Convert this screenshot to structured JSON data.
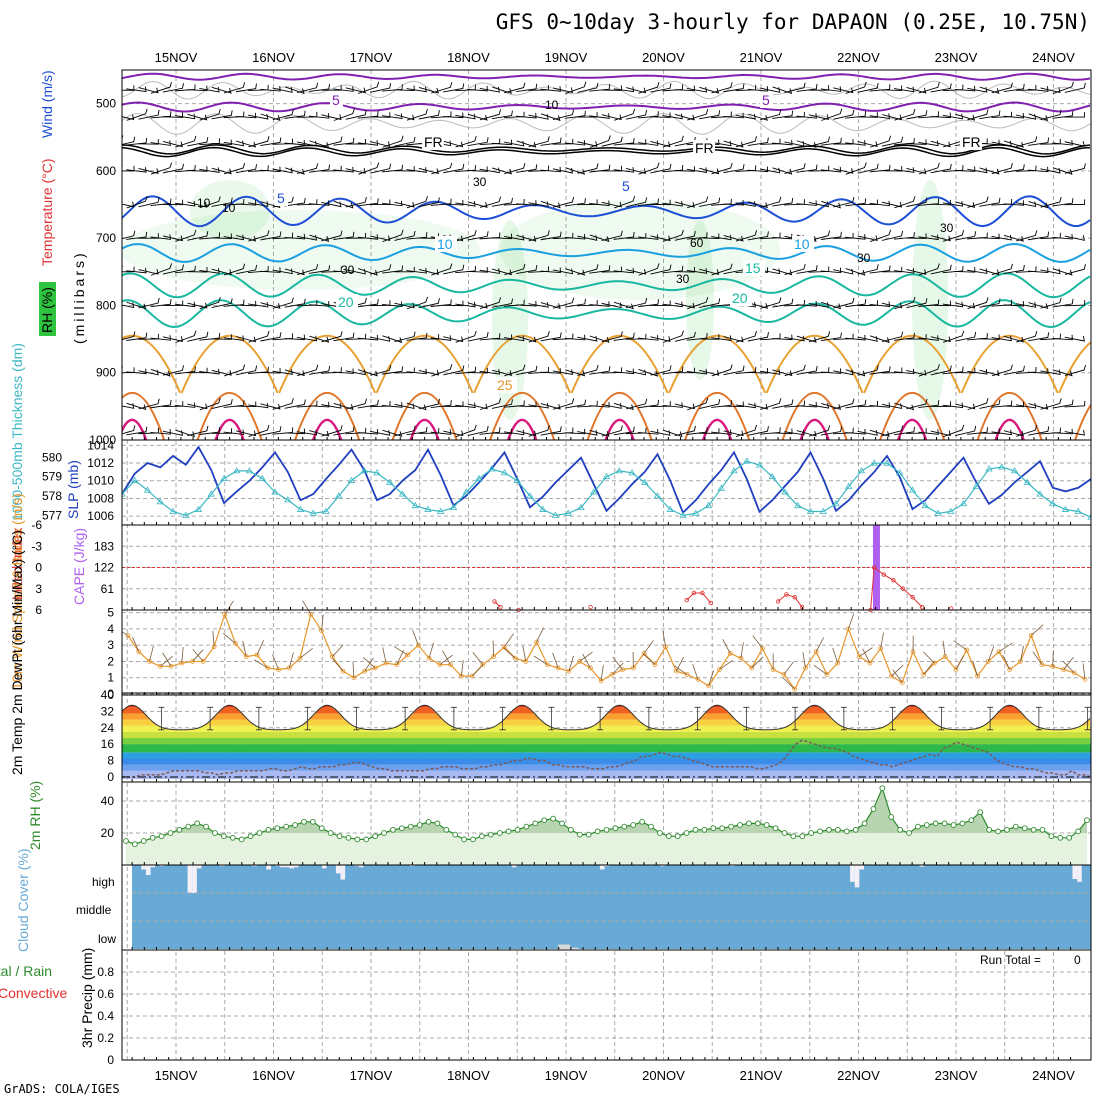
{
  "title": "GFS 0~10day 3-hourly for DAPAON (0.25E, 10.75N)",
  "credit": "GrADS: COLA/IGES",
  "dates": [
    "15NOV",
    "16NOV",
    "17NOV",
    "18NOV",
    "19NOV",
    "20NOV",
    "21NOV",
    "22NOV",
    "23NOV",
    "24NOV"
  ],
  "colors": {
    "tempLine": "#1d4fd6",
    "rhFill": "#2fc43f",
    "wind": "#000000",
    "thickness": "#1f3fbf",
    "slp": "#3bb8c4",
    "lifted": "#e03030",
    "cape": "#b060f0",
    "windSpeed": "#e8962a",
    "rh2m": "#2e8b2e",
    "cloud": "#69a9d6"
  },
  "chart_data": [
    {
      "type": "contour",
      "panel": "upper-air",
      "ylabel_parts": [
        "RH (%)",
        "Temperature (°C)",
        "Wind (m/s)",
        "(millibars)"
      ],
      "yticks": [
        500,
        600,
        700,
        800,
        900,
        1000
      ],
      "ylim": [
        450,
        1000
      ],
      "contour_labels": [
        {
          "text": "5",
          "color": "#8020b0"
        },
        {
          "text": "5",
          "color": "#8020b0"
        },
        {
          "text": "FR",
          "color": "#000000"
        },
        {
          "text": "FR",
          "color": "#000000"
        },
        {
          "text": "FR",
          "color": "#000000"
        },
        {
          "text": "5",
          "color": "#1d4fd6"
        },
        {
          "text": "5",
          "color": "#1d4fd6"
        },
        {
          "text": "10",
          "color": "#1aa0e0"
        },
        {
          "text": "10",
          "color": "#1aa0e0"
        },
        {
          "text": "15",
          "color": "#18b8a0"
        },
        {
          "text": "20",
          "color": "#18b8a0"
        },
        {
          "text": "20",
          "color": "#18b8a0"
        },
        {
          "text": "25",
          "color": "#e8962a"
        }
      ],
      "rh_labels": [
        "10",
        "10",
        "30",
        "10",
        "30",
        "60",
        "30",
        "30",
        "30"
      ]
    },
    {
      "type": "line",
      "panel": "thickness-slp",
      "ylabel_left": "1000-500mb Thickness (dm)",
      "ylabel_right": "SLP (mb)",
      "yticks_left": [
        577,
        578,
        579,
        580
      ],
      "yticks_right": [
        1006,
        1008,
        1010,
        1012,
        1014
      ],
      "ylim_left": [
        576.5,
        580.9
      ],
      "ylim_right": [
        1005,
        1014.6
      ],
      "series": [
        {
          "values": [
            1008.5,
            1010.8,
            1012,
            1011.5,
            1012.8,
            1011.8,
            1013.8,
            1011.2,
            1007.5,
            1008.8,
            1010,
            1011.5,
            1013.2,
            1011,
            1007.8,
            1008.5,
            1010.2,
            1011.8,
            1013.5,
            1011.2,
            1007.8,
            1008.5,
            1010,
            1011.2,
            1013.5,
            1010.6,
            1007.2,
            1008.3,
            1009.8,
            1011.4,
            1013.2,
            1010.2,
            1007,
            1008.2,
            1009.8,
            1011.2,
            1012.6,
            1009.6,
            1006.6,
            1008,
            1009.6,
            1011,
            1013,
            1010,
            1006.4,
            1007.8,
            1009.6,
            1011.2,
            1013.2,
            1010.2,
            1006.5,
            1007.8,
            1009.4,
            1011,
            1013.2,
            1010.2,
            1006.6,
            1007.8,
            1009.5,
            1011,
            1012.8,
            1010.4,
            1006.8,
            1007.8,
            1009.4,
            1011,
            1012.6,
            1009.8,
            1007.4,
            1008.4,
            1009.8,
            1011,
            1012.2,
            1009.2,
            1008.8,
            1009.2,
            1010.2
          ]
        },
        {
          "values": [
            578.1,
            578.8,
            578.3,
            577.7,
            577.2,
            577,
            577.3,
            578.1,
            578.9,
            579.3,
            579.3,
            578.9,
            578.2,
            577.8,
            577.3,
            577.1,
            577.2,
            578,
            578.8,
            579.3,
            579.2,
            578.7,
            578.1,
            577.5,
            577.3,
            577.2,
            577.4,
            578.2,
            578.9,
            579.4,
            579.2,
            578.8,
            578,
            577.3,
            577,
            577.1,
            577.4,
            578.2,
            579,
            579.3,
            579.2,
            578.7,
            578,
            577.3,
            577,
            577.1,
            577.5,
            578.4,
            579.3,
            579.8,
            579.6,
            579,
            578.2,
            577.5,
            577.2,
            577.2,
            577.6,
            578.5,
            579.3,
            579.7,
            579.7,
            579.2,
            578.3,
            577.5,
            577.1,
            577.2,
            577.6,
            578.5,
            579.4,
            579.5,
            579.3,
            578.7,
            578.1,
            577.6,
            577.3,
            577.2,
            576.9
          ]
        }
      ]
    },
    {
      "type": "line",
      "panel": "stability",
      "ylabel_left": "Lifted Index",
      "ylabel_right": "CAPE (J/kg)",
      "yticks_left": [
        "-6",
        "-3",
        "0",
        "3",
        "6"
      ],
      "yticks_right": [
        61,
        122,
        183
      ],
      "cape_ylim": [
        0,
        244
      ],
      "cape_bars": [
        {
          "x": 62.5,
          "value": 244
        }
      ],
      "lifted_points": [
        {
          "x": 31,
          "value": 4.8
        },
        {
          "x": 31.5,
          "value": 5.6
        },
        {
          "x": 33,
          "value": 6
        },
        {
          "x": 39,
          "value": 5.6
        },
        {
          "x": 47,
          "value": 4.6
        },
        {
          "x": 47.6,
          "value": 3.6
        },
        {
          "x": 48.3,
          "value": 3.6
        },
        {
          "x": 49,
          "value": 5
        },
        {
          "x": 54.6,
          "value": 4.8
        },
        {
          "x": 55.3,
          "value": 3.8
        },
        {
          "x": 56,
          "value": 4.2
        },
        {
          "x": 56.6,
          "value": 5.6
        },
        {
          "x": 62.3,
          "value": 6
        },
        {
          "x": 62.6,
          "value": 0
        },
        {
          "x": 63.4,
          "value": 1
        },
        {
          "x": 64.2,
          "value": 1.8
        },
        {
          "x": 65,
          "value": 3
        },
        {
          "x": 65.8,
          "value": 4.2
        },
        {
          "x": 66.6,
          "value": 5.6
        },
        {
          "x": 69,
          "value": 5.8
        }
      ]
    },
    {
      "type": "line",
      "panel": "10m-wind",
      "ylabel": "10m Wind Speed & Barbs (m/s)",
      "yticks": [
        0,
        1,
        2,
        3,
        4,
        5
      ],
      "ylim": [
        0,
        5.1
      ],
      "series": [
        {
          "values": [
            3.6,
            2.6,
            2,
            1.7,
            1.7,
            1.9,
            2,
            2,
            2.9,
            4.9,
            3.1,
            2.3,
            2.4,
            1.6,
            1.5,
            1.6,
            2.2,
            4.9,
            3.9,
            2.3,
            1.4,
            1,
            1.4,
            1.6,
            1.9,
            1.8,
            2.4,
            3,
            2.2,
            1.8,
            1.8,
            1.1,
            1.1,
            1.8,
            2.3,
            2.9,
            2.2,
            2,
            3.2,
            1.8,
            1.6,
            1.4,
            2,
            1.6,
            0.8,
            1.2,
            1.5,
            1.6,
            2.5,
            1.8,
            2.9,
            1.4,
            1.2,
            0.9,
            0.5,
            1.5,
            2.5,
            2.2,
            1.6,
            2.8,
            1.5,
            1.2,
            0.3,
            1.6,
            2.6,
            1.2,
            1.9,
            4,
            2.3,
            1.9,
            2.8,
            1.1,
            0.7,
            2.6,
            1.2,
            1.9,
            2.3,
            1.5,
            2.7,
            1.1,
            2,
            2.6,
            1.5,
            2,
            3.6,
            1.8,
            1.7,
            1.5,
            1.3,
            0.9
          ]
        }
      ]
    },
    {
      "type": "area",
      "panel": "2m-temperature",
      "ylabel": "2m Temp 2m DewPt (6hr Min/Max) (°C)",
      "yticks": [
        0,
        8,
        16,
        24,
        32,
        40
      ],
      "ylim": [
        -1,
        40
      ],
      "cycle": {
        "min": 23,
        "max": 35,
        "period_days": 1,
        "days": 10
      },
      "dewpoint": [
        0,
        0,
        0,
        1,
        1,
        1,
        1,
        2,
        3,
        3,
        3,
        3,
        3,
        2,
        2,
        1,
        2,
        2,
        3,
        3,
        3,
        3,
        3,
        4,
        4,
        3,
        3,
        4,
        5,
        4,
        4,
        5,
        5,
        5,
        6,
        6,
        7,
        7,
        6,
        5,
        4,
        4,
        3,
        3,
        3,
        3,
        3,
        3,
        4,
        4,
        5,
        5,
        5,
        4,
        4,
        4,
        5,
        5,
        6,
        6,
        7,
        8,
        8,
        9,
        9,
        8,
        8,
        6,
        6,
        5,
        5,
        5,
        5,
        4,
        4,
        4,
        5,
        5,
        6,
        7,
        8,
        10,
        10,
        11,
        12,
        11,
        10,
        10,
        9,
        8,
        7,
        6,
        5,
        5,
        5,
        5,
        5,
        5,
        5,
        4,
        4,
        5,
        6,
        8,
        12,
        16,
        18,
        17,
        16,
        15,
        14,
        14,
        13,
        12,
        10,
        9,
        8,
        7,
        6,
        6,
        5,
        6,
        7,
        8,
        9,
        10,
        11,
        10,
        14,
        15,
        17,
        16,
        15,
        14,
        13,
        12,
        9,
        7,
        6,
        5,
        5,
        4,
        4,
        3,
        2,
        2,
        1,
        1,
        3,
        1,
        1,
        0
      ]
    },
    {
      "type": "area",
      "panel": "2m-rh",
      "ylabel": "2m RH (%)",
      "yticks": [
        20,
        40
      ],
      "ylim": [
        0,
        50
      ],
      "series": [
        {
          "values": [
            15,
            13,
            15,
            17,
            18,
            20,
            22,
            24,
            26,
            24,
            20,
            18,
            17,
            16,
            18,
            20,
            22,
            23,
            24,
            25,
            27,
            27,
            23,
            20,
            18,
            17,
            16,
            16,
            18,
            20,
            22,
            23,
            24,
            25,
            27,
            26,
            22,
            19,
            16,
            16,
            18,
            19,
            20,
            21,
            22,
            24,
            26,
            28,
            29,
            26,
            22,
            19,
            19,
            21,
            22,
            23,
            24,
            25,
            27,
            24,
            20,
            18,
            18,
            20,
            22,
            22,
            23,
            23,
            24,
            25,
            26,
            26,
            25,
            23,
            20,
            18,
            18,
            20,
            21,
            22,
            22,
            21,
            22,
            26,
            35,
            48,
            30,
            22,
            20,
            24,
            25,
            26,
            26,
            25,
            26,
            28,
            33,
            22,
            21,
            22,
            24,
            23,
            22,
            22,
            18,
            17,
            17,
            21,
            28
          ]
        }
      ]
    },
    {
      "type": "bar",
      "panel": "cloud-cover",
      "ylabel": "Cloud Cover (%)",
      "levels": [
        "high",
        "middle",
        "low"
      ],
      "high_clear": [
        0,
        0,
        8,
        18,
        4,
        0,
        2,
        0,
        0,
        0,
        0,
        0,
        50,
        50,
        6,
        0,
        0,
        0,
        0,
        2,
        0,
        0,
        0,
        0,
        0,
        0,
        2,
        0,
        0,
        8,
        0,
        2,
        4,
        4,
        6,
        4,
        0,
        0,
        0,
        0,
        0,
        6,
        0,
        0,
        15,
        26,
        0,
        0,
        2,
        4,
        0,
        0,
        0,
        0,
        0,
        0,
        0,
        0,
        0,
        0,
        2,
        0,
        0,
        0,
        0,
        0,
        0,
        0,
        0,
        0,
        0,
        0,
        0,
        0,
        0,
        0,
        0,
        0,
        0,
        0,
        0,
        0,
        4,
        0,
        0,
        0,
        0,
        0,
        0,
        0,
        0,
        0,
        0,
        0,
        0,
        0,
        0,
        0,
        0,
        0,
        0,
        8,
        2,
        0,
        0,
        0,
        0,
        0,
        0,
        0,
        0,
        0,
        0,
        0,
        2,
        0,
        0,
        0,
        0,
        0,
        0,
        0,
        0,
        0,
        0,
        0,
        0,
        0,
        0,
        2,
        0,
        0,
        0,
        0,
        0,
        0,
        0,
        0,
        0,
        0,
        0,
        0,
        0,
        0,
        0,
        0,
        0,
        0,
        0,
        0,
        0,
        0,
        0,
        0,
        0,
        30,
        40,
        8,
        0,
        0,
        0,
        0,
        0,
        0,
        0,
        0,
        0,
        0,
        0,
        0,
        3,
        0,
        0,
        0,
        0,
        0,
        0,
        0,
        0,
        0,
        0,
        0,
        0,
        0,
        0,
        0,
        0,
        0,
        0,
        0,
        0,
        0,
        0,
        0,
        0,
        0,
        0,
        0,
        0,
        0,
        0,
        0,
        0,
        25,
        30,
        0,
        0
      ],
      "low_clear": [
        {
          "x": 34.8,
          "value": 40
        },
        {
          "x": 35.5,
          "value": 12
        }
      ]
    },
    {
      "type": "bar",
      "panel": "precip",
      "ylabel": "3hr Precip (mm)",
      "legend": [
        "Total / Rain",
        "Convective"
      ],
      "run_total_label": "Run Total =",
      "run_total": "0",
      "yticks": [
        0,
        0.2,
        0.4,
        0.6,
        0.8
      ],
      "ylim": [
        0,
        1
      ],
      "values": []
    }
  ]
}
